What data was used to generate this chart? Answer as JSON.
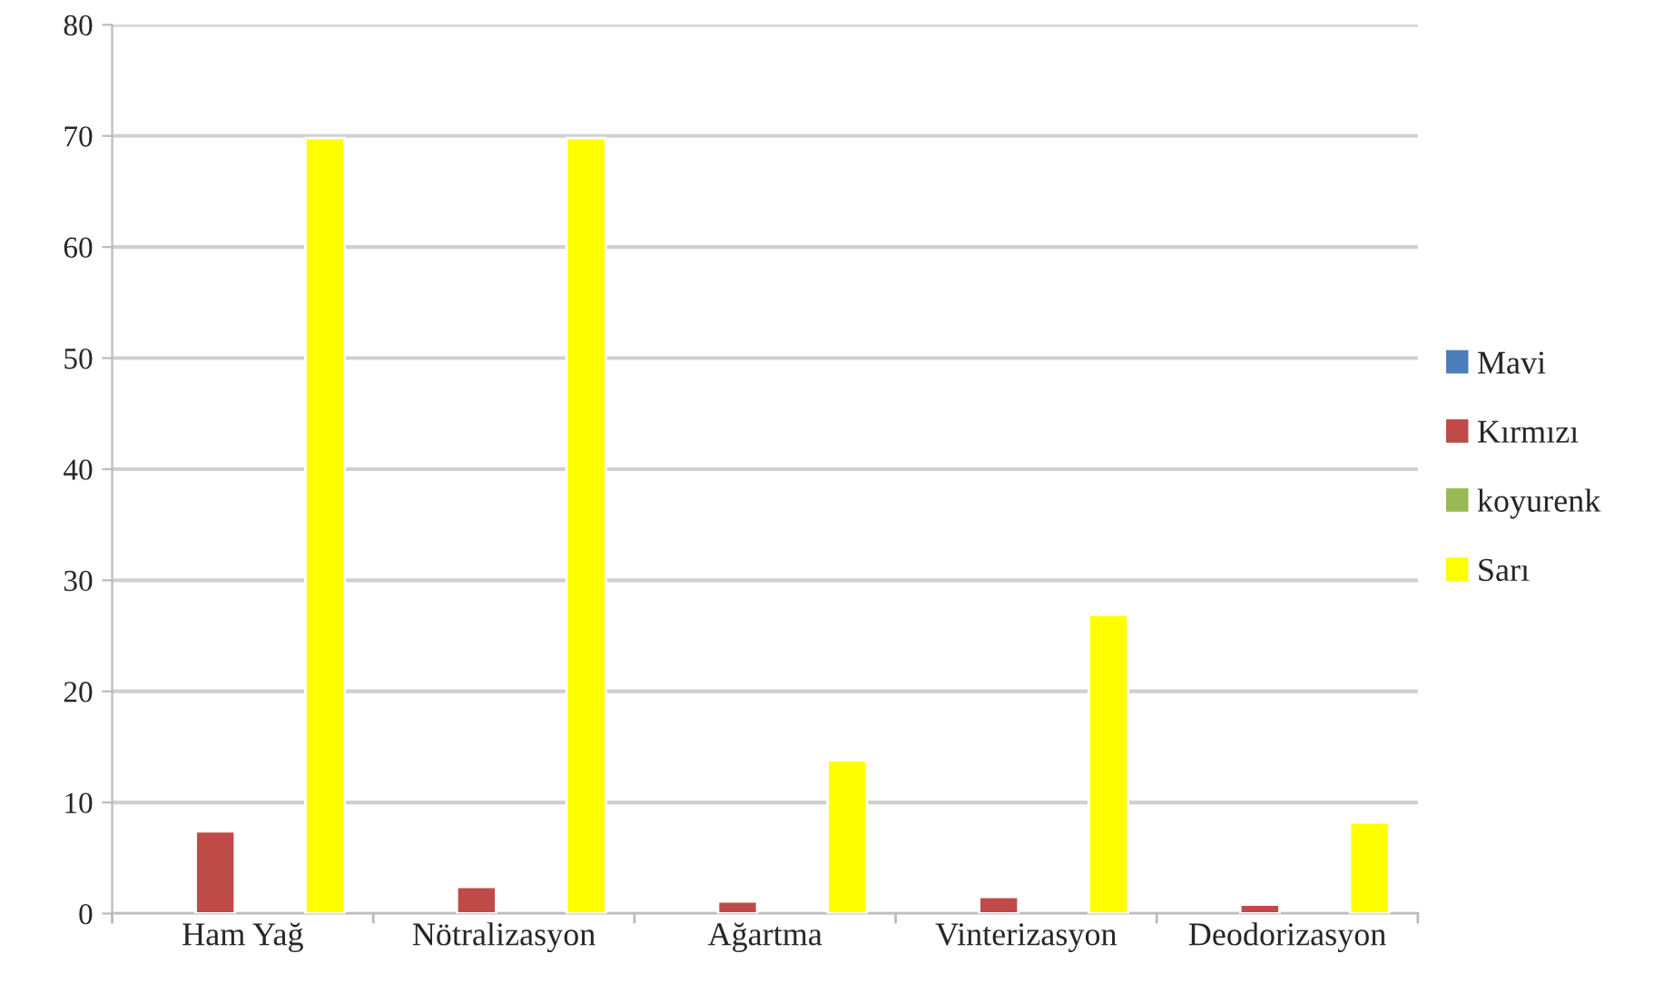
{
  "chart_data": {
    "type": "bar",
    "categories": [
      "Ham Yağ",
      "Nötralizasyon",
      "Ağartma",
      "Vinterizasyon",
      "Deodorizasyon"
    ],
    "series": [
      {
        "name": "Mavi",
        "color": "#4a7ebb",
        "values": [
          null,
          null,
          null,
          null,
          null
        ]
      },
      {
        "name": "Kırmızı",
        "color": "#be4b48",
        "values": [
          7.4,
          2.4,
          1.1,
          1.5,
          0.8
        ]
      },
      {
        "name": "koyurenk",
        "color": "#98b954",
        "values": [
          null,
          null,
          null,
          null,
          null
        ]
      },
      {
        "name": "Sarı",
        "color": "#ffff00",
        "values": [
          69.8,
          69.8,
          13.8,
          26.9,
          8.2
        ]
      }
    ],
    "ylim": [
      0,
      80
    ],
    "yticks": [
      0,
      10,
      20,
      30,
      40,
      50,
      60,
      70,
      80
    ],
    "grid": "y",
    "legend": "right"
  }
}
